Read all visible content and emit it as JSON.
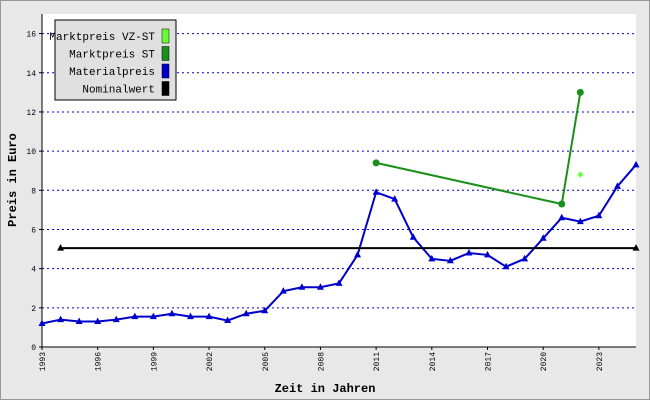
{
  "chart_data": {
    "type": "line",
    "xlabel": "Zeit in Jahren",
    "ylabel": "Preis in Euro",
    "xlim": [
      1993,
      2025
    ],
    "xticks": [
      1993,
      1996,
      1999,
      2002,
      2005,
      2008,
      2011,
      2014,
      2017,
      2020,
      2023
    ],
    "ylim": [
      0,
      17
    ],
    "yticks": [
      0,
      2,
      4,
      6,
      8,
      10,
      12,
      14,
      16
    ],
    "grid": true,
    "legend": "upper left",
    "series": [
      {
        "name": "Marktpreis VZ-ST",
        "color": "#66ff33",
        "marker": "diamond",
        "line": false,
        "x": [
          2022
        ],
        "values": [
          8.8
        ]
      },
      {
        "name": "Marktpreis ST",
        "color": "#1a8f1a",
        "marker": "circle",
        "line": true,
        "x": [
          2011,
          2021,
          2022
        ],
        "values": [
          9.4,
          7.3,
          13.0
        ]
      },
      {
        "name": "Materialpreis",
        "color": "#0000cc",
        "marker": "triangle",
        "line": true,
        "x": [
          1993,
          1994,
          1995,
          1996,
          1997,
          1998,
          1999,
          2000,
          2001,
          2002,
          2003,
          2004,
          2005,
          2006,
          2007,
          2008,
          2009,
          2010,
          2011,
          2012,
          2013,
          2014,
          2015,
          2016,
          2017,
          2018,
          2019,
          2020,
          2021,
          2022,
          2023,
          2024,
          2025
        ],
        "values": [
          1.2,
          1.4,
          1.3,
          1.3,
          1.4,
          1.55,
          1.55,
          1.7,
          1.55,
          1.55,
          1.35,
          1.7,
          1.85,
          2.85,
          3.05,
          3.05,
          3.25,
          4.7,
          7.9,
          7.55,
          5.6,
          4.5,
          4.4,
          4.8,
          4.7,
          4.1,
          4.5,
          5.55,
          6.6,
          6.4,
          6.7,
          8.2,
          9.3
        ]
      },
      {
        "name": "Nominalwert",
        "color": "#000000",
        "marker": "triangle",
        "line": true,
        "x": [
          1994,
          2025
        ],
        "values": [
          5.05,
          5.05
        ]
      }
    ]
  }
}
